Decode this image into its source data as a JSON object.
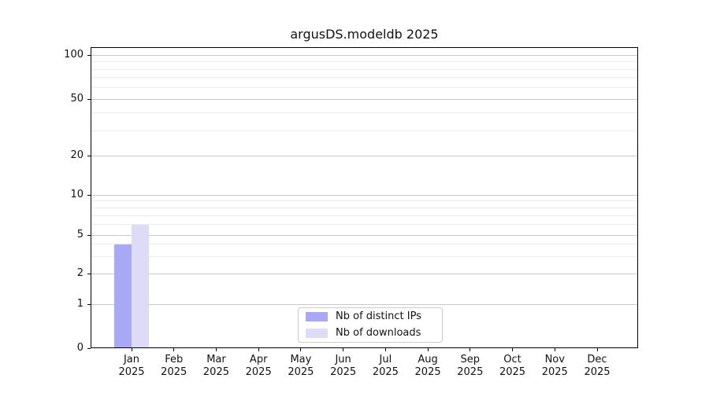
{
  "chart_data": {
    "type": "bar",
    "title": "argusDS.modeldb 2025",
    "x_categories_months": [
      "Jan",
      "Feb",
      "Mar",
      "Apr",
      "May",
      "Jun",
      "Jul",
      "Aug",
      "Sep",
      "Oct",
      "Nov",
      "Dec"
    ],
    "x_year": "2025",
    "series": [
      {
        "name": "Nb of distinct IPs",
        "color": "#a8a8f6",
        "values": [
          4,
          0,
          0,
          0,
          0,
          0,
          0,
          0,
          0,
          0,
          0,
          0
        ]
      },
      {
        "name": "Nb of downloads",
        "color": "#dcdcf9",
        "values": [
          6,
          0,
          0,
          0,
          0,
          0,
          0,
          0,
          0,
          0,
          0,
          0
        ]
      }
    ],
    "y_ticks": [
      0,
      1,
      2,
      5,
      10,
      20,
      50,
      100
    ],
    "y_minor_gridlines": [
      3,
      4,
      6,
      7,
      8,
      9,
      30,
      40,
      60,
      70,
      80,
      90
    ],
    "ylim": [
      0,
      100
    ],
    "y_scale": "log above 1, linear between 0 and 1",
    "grid": {
      "horizontal_major": true,
      "horizontal_minor": true,
      "vertical": false
    },
    "legend_position": "bottom-center-inside"
  }
}
